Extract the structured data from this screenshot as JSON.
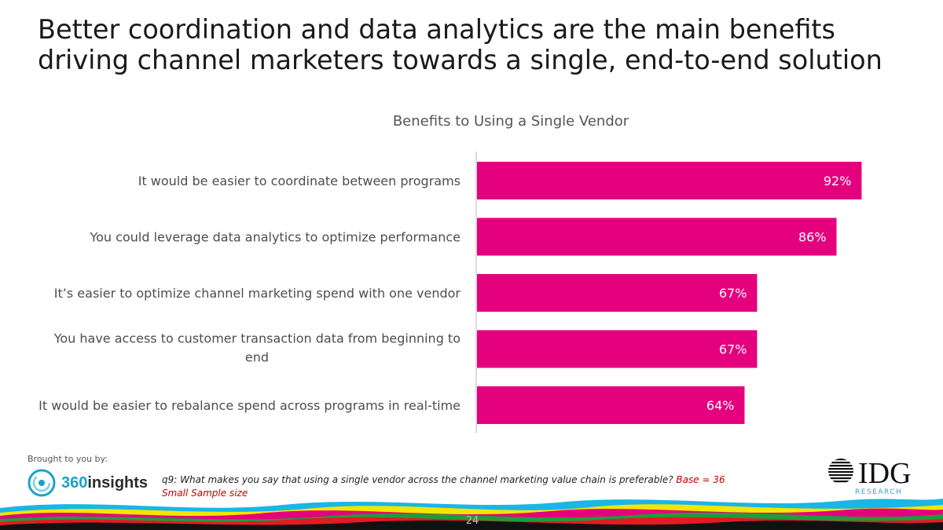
{
  "headline": "Better coordination and data analytics are the main benefits driving channel marketers towards a single, end-to-end solution",
  "chart_data": {
    "type": "bar",
    "orientation": "horizontal",
    "title": "Benefits to Using a Single Vendor",
    "categories": [
      "It would be easier to coordinate between programs",
      "You could leverage data analytics to optimize performance",
      "It’s easier to optimize channel marketing spend with one vendor",
      "You have access to customer transaction data from beginning to end",
      "It would be easier to rebalance spend across programs in real-time"
    ],
    "category_lines": [
      [
        "It would be easier to coordinate between programs"
      ],
      [
        "You could leverage data analytics to optimize performance"
      ],
      [
        "It’s easier to optimize channel marketing spend with one vendor"
      ],
      [
        "You have access to customer transaction data from beginning to",
        "end"
      ],
      [
        "It would be easier to rebalance spend across programs in real-time"
      ]
    ],
    "values": [
      92,
      86,
      67,
      67,
      64
    ],
    "value_labels": [
      "92%",
      "86%",
      "67%",
      "67%",
      "64%"
    ],
    "unit": "%",
    "xlim": [
      0,
      100
    ],
    "bar_color": "#E5007E",
    "axis_color": "#d0d0d0",
    "grid": false,
    "xlabel": "",
    "ylabel": ""
  },
  "footer": {
    "brought_by": "Brought to you by:",
    "logo_360_number": "360",
    "logo_360_word": "insights",
    "question": "q9: What makes you say that using a single vendor across the channel marketing value chain is preferable?",
    "base": "Base = 36",
    "sample_note": "Small Sample size",
    "idg_logo_text": "IDG",
    "idg_sub": "RESEARCH",
    "page_number": "24"
  },
  "colors": {
    "brand_teal": "#1aa3c7",
    "note_red": "#c00000"
  }
}
